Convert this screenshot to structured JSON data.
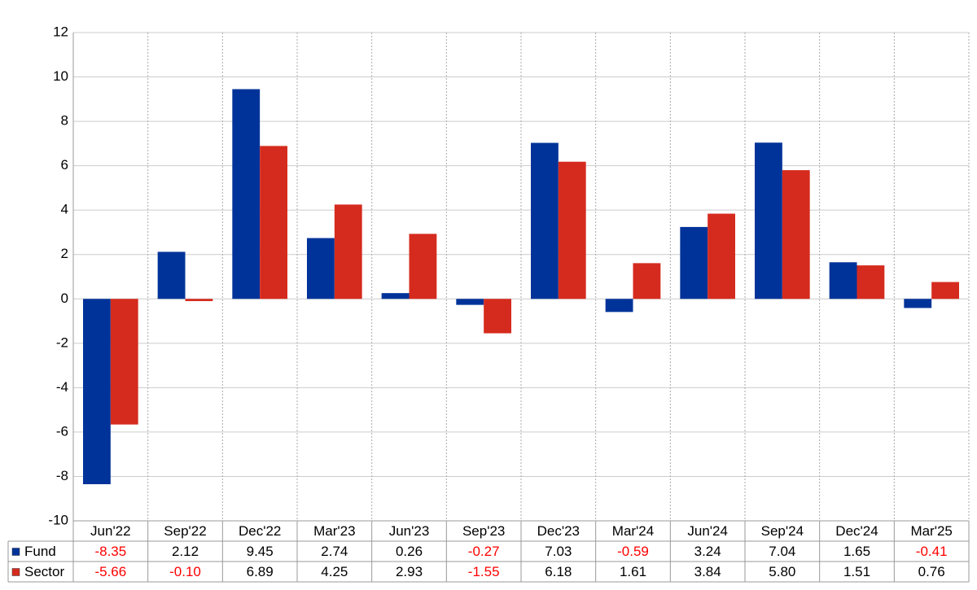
{
  "chart_data": {
    "type": "bar",
    "categories": [
      "Jun'22",
      "Sep'22",
      "Dec'22",
      "Mar'23",
      "Jun'23",
      "Sep'23",
      "Dec'23",
      "Mar'24",
      "Jun'24",
      "Sep'24",
      "Dec'24",
      "Mar'25"
    ],
    "series": [
      {
        "name": "Fund",
        "color": "#003399",
        "values": [
          -8.35,
          2.12,
          9.45,
          2.74,
          0.26,
          -0.27,
          7.03,
          -0.59,
          3.24,
          7.04,
          1.65,
          -0.41
        ],
        "value_labels": [
          "-8.35",
          "2.12",
          "9.45",
          "2.74",
          "0.26",
          "-0.27",
          "7.03",
          "-0.59",
          "3.24",
          "7.04",
          "1.65",
          "-0.41"
        ]
      },
      {
        "name": "Sector",
        "color": "#d52b1e",
        "values": [
          -5.66,
          -0.1,
          6.89,
          4.25,
          2.93,
          -1.55,
          6.18,
          1.61,
          3.84,
          5.8,
          1.51,
          0.76
        ],
        "value_labels": [
          "-5.66",
          "-0.10",
          "6.89",
          "4.25",
          "2.93",
          "-1.55",
          "6.18",
          "1.61",
          "3.84",
          "5.80",
          "1.51",
          "0.76"
        ]
      }
    ],
    "ylim": [
      -10,
      12
    ],
    "yticks": [
      -10,
      -8,
      -6,
      -4,
      -2,
      0,
      2,
      4,
      6,
      8,
      10,
      12
    ],
    "grid": true,
    "negative_label_color": "#ff0000"
  }
}
